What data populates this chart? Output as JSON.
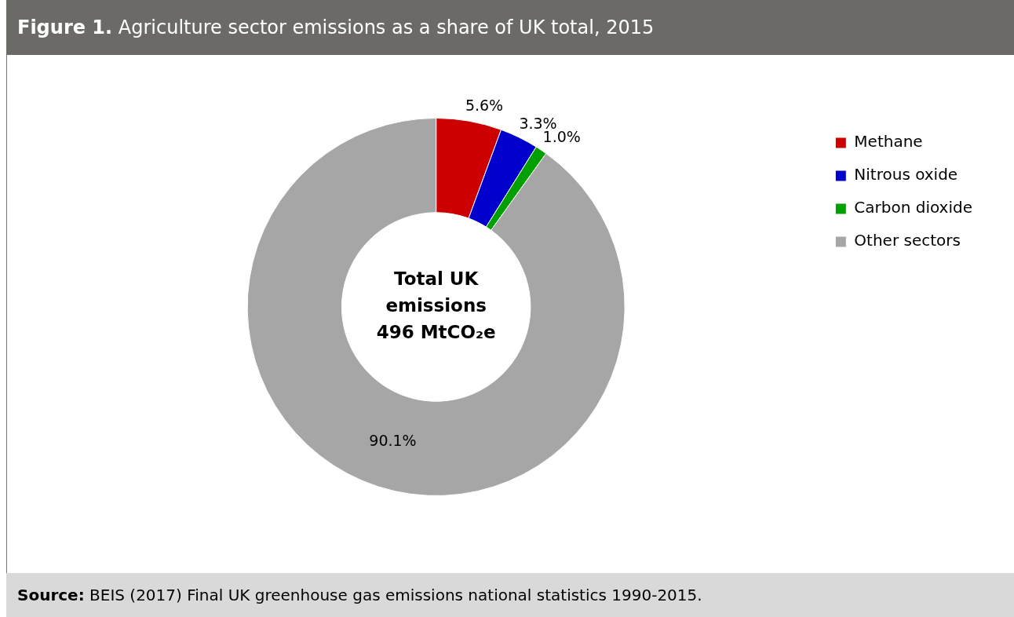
{
  "chart_data": {
    "type": "donut",
    "title": "Figure 1. Agriculture sector emissions as a share of UK total, 2015",
    "categories": [
      "Methane",
      "Nitrous oxide",
      "Carbon dioxide",
      "Other sectors"
    ],
    "values": [
      5.6,
      3.3,
      1.0,
      90.1
    ],
    "colors": [
      "#cc0000",
      "#0000cc",
      "#00a000",
      "#a6a6a6"
    ],
    "value_labels": [
      "5.6%",
      "3.3%",
      "1.0%",
      "90.1%"
    ],
    "legend": "top right",
    "annotations": [
      "Total UK emissions 496 MtCO₂e",
      "Source: BEIS (2017) Final UK greenhouse gas emissions national statistics 1990-2015."
    ]
  }
}
